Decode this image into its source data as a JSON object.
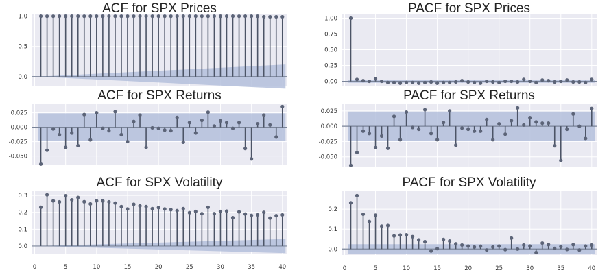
{
  "chart_data": [
    {
      "id": "acf-prices",
      "type": "stem",
      "title": "ACF for SPX Prices",
      "ylim": [
        -0.15,
        1.03
      ],
      "yticks": [
        0.0,
        0.5,
        1.0
      ],
      "ytick_labels": [
        "0.0",
        "0.5",
        "1.0"
      ],
      "xlim": [
        -0.5,
        40.8
      ],
      "xticks": [
        0,
        5,
        10,
        15,
        20,
        25,
        30,
        35,
        40
      ],
      "show_xtick_labels": false,
      "lags": [
        1,
        2,
        3,
        4,
        5,
        6,
        7,
        8,
        9,
        10,
        11,
        12,
        13,
        14,
        15,
        16,
        17,
        18,
        19,
        20,
        21,
        22,
        23,
        24,
        25,
        26,
        27,
        28,
        29,
        30,
        31,
        32,
        33,
        34,
        35,
        36,
        37,
        38,
        39,
        40
      ],
      "values": [
        1.0,
        1.0,
        1.0,
        1.0,
        1.0,
        1.0,
        1.0,
        1.0,
        1.0,
        1.0,
        1.0,
        1.0,
        1.0,
        1.0,
        1.0,
        1.0,
        1.0,
        1.0,
        1.0,
        1.0,
        1.0,
        1.0,
        1.0,
        1.0,
        1.0,
        1.0,
        1.0,
        1.0,
        1.0,
        1.0,
        1.0,
        1.0,
        1.0,
        1.0,
        1.0,
        1.0,
        0.99,
        0.99,
        0.99,
        0.99
      ],
      "confint": {
        "type": "growing",
        "start": 0.0,
        "end": 0.2
      },
      "grid": true
    },
    {
      "id": "pacf-prices",
      "type": "stem",
      "title": "PACF for SPX Prices",
      "ylim": [
        -0.07,
        1.06
      ],
      "yticks": [
        0.0,
        0.25,
        0.5,
        0.75,
        1.0
      ],
      "ytick_labels": [
        "0.00",
        "0.25",
        "0.50",
        "0.75",
        "1.00"
      ],
      "xlim": [
        -0.5,
        40.8
      ],
      "xticks": [
        0,
        5,
        10,
        15,
        20,
        25,
        30,
        35,
        40
      ],
      "show_xtick_labels": false,
      "lags": [
        1,
        2,
        3,
        4,
        5,
        6,
        7,
        8,
        9,
        10,
        11,
        12,
        13,
        14,
        15,
        16,
        17,
        18,
        19,
        20,
        21,
        22,
        23,
        24,
        25,
        26,
        27,
        28,
        29,
        30,
        31,
        32,
        33,
        34,
        35,
        36,
        37,
        38,
        39,
        40
      ],
      "values": [
        1.0,
        0.03,
        0.01,
        0.0,
        0.04,
        0.0,
        -0.02,
        -0.02,
        -0.03,
        -0.02,
        -0.02,
        -0.03,
        -0.02,
        -0.01,
        -0.03,
        -0.02,
        -0.02,
        -0.01,
        0.01,
        -0.01,
        -0.02,
        -0.03,
        0.0,
        -0.01,
        -0.02,
        0.0,
        0.0,
        -0.01,
        0.03,
        0.0,
        -0.02,
        0.02,
        0.01,
        -0.01,
        0.0,
        0.02,
        -0.01,
        -0.01,
        -0.02,
        0.03
      ],
      "confint": {
        "type": "constant",
        "value": 0.024
      },
      "grid": true
    },
    {
      "id": "acf-returns",
      "type": "stem",
      "title": "ACF for SPX Returns",
      "ylim": [
        -0.066,
        0.04
      ],
      "yticks": [
        -0.05,
        -0.025,
        0.0,
        0.025
      ],
      "ytick_labels": [
        "-0.050",
        "-0.025",
        "0.000",
        "0.025"
      ],
      "xlim": [
        -0.5,
        40.8
      ],
      "xticks": [
        0,
        5,
        10,
        15,
        20,
        25,
        30,
        35,
        40
      ],
      "show_xtick_labels": false,
      "lags": [
        1,
        2,
        3,
        4,
        5,
        6,
        7,
        8,
        9,
        10,
        11,
        12,
        13,
        14,
        15,
        16,
        17,
        18,
        19,
        20,
        21,
        22,
        23,
        24,
        25,
        26,
        27,
        28,
        29,
        30,
        31,
        32,
        33,
        34,
        35,
        36,
        37,
        38,
        39,
        40
      ],
      "values": [
        -0.064,
        -0.04,
        -0.003,
        -0.013,
        -0.035,
        -0.01,
        -0.032,
        0.022,
        -0.022,
        0.025,
        -0.002,
        -0.006,
        0.027,
        -0.013,
        -0.025,
        0.01,
        0.021,
        -0.035,
        -0.001,
        -0.002,
        -0.005,
        -0.006,
        0.017,
        -0.026,
        0.008,
        -0.01,
        0.012,
        0.026,
        0.002,
        0.011,
        0.008,
        -0.002,
        0.008,
        -0.037,
        -0.055,
        0.006,
        0.021,
        0.004,
        -0.017,
        0.036
      ],
      "confint": {
        "type": "constant",
        "value": 0.024
      },
      "grid": true
    },
    {
      "id": "pacf-returns",
      "type": "stem",
      "title": "PACF for SPX Returns",
      "ylim": [
        -0.066,
        0.036
      ],
      "yticks": [
        -0.05,
        -0.025,
        0.0,
        0.025
      ],
      "ytick_labels": [
        "-0.050",
        "-0.025",
        "0.000",
        "0.025"
      ],
      "xlim": [
        -0.5,
        40.8
      ],
      "xticks": [
        0,
        5,
        10,
        15,
        20,
        25,
        30,
        35,
        40
      ],
      "show_xtick_labels": false,
      "lags": [
        1,
        2,
        3,
        4,
        5,
        6,
        7,
        8,
        9,
        10,
        11,
        12,
        13,
        14,
        15,
        16,
        17,
        18,
        19,
        20,
        21,
        22,
        23,
        24,
        25,
        26,
        27,
        28,
        29,
        30,
        31,
        32,
        33,
        34,
        35,
        36,
        37,
        38,
        39,
        40
      ],
      "values": [
        -0.064,
        -0.043,
        -0.008,
        -0.012,
        -0.035,
        -0.016,
        -0.036,
        0.016,
        -0.022,
        0.023,
        -0.002,
        -0.005,
        0.027,
        -0.012,
        -0.022,
        0.006,
        0.025,
        -0.031,
        -0.003,
        -0.005,
        -0.008,
        -0.008,
        0.011,
        -0.022,
        0.004,
        -0.013,
        0.009,
        0.03,
        0.002,
        0.014,
        0.007,
        0.005,
        0.005,
        -0.032,
        -0.056,
        -0.005,
        0.02,
        0.0,
        -0.02,
        0.029
      ],
      "confint": {
        "type": "constant",
        "value": 0.024
      },
      "grid": true
    },
    {
      "id": "acf-volatility",
      "type": "stem",
      "title": "ACF for SPX Volatility",
      "ylim": [
        -0.045,
        0.325
      ],
      "yticks": [
        0.0,
        0.1,
        0.2,
        0.3
      ],
      "ytick_labels": [
        "0.0",
        "0.1",
        "0.2",
        "0.3"
      ],
      "xlim": [
        -0.5,
        40.8
      ],
      "xticks": [
        0,
        5,
        10,
        15,
        20,
        25,
        30,
        35,
        40
      ],
      "show_xtick_labels": true,
      "xtick_labels": [
        "0",
        "5",
        "10",
        "15",
        "20",
        "25",
        "30",
        "35",
        "40"
      ],
      "lags": [
        1,
        2,
        3,
        4,
        5,
        6,
        7,
        8,
        9,
        10,
        11,
        12,
        13,
        14,
        15,
        16,
        17,
        18,
        19,
        20,
        21,
        22,
        23,
        24,
        25,
        26,
        27,
        28,
        29,
        30,
        31,
        32,
        33,
        34,
        35,
        36,
        37,
        38,
        39,
        40
      ],
      "values": [
        0.23,
        0.304,
        0.268,
        0.262,
        0.298,
        0.274,
        0.288,
        0.263,
        0.25,
        0.268,
        0.268,
        0.262,
        0.255,
        0.234,
        0.22,
        0.248,
        0.238,
        0.234,
        0.222,
        0.228,
        0.22,
        0.216,
        0.21,
        0.222,
        0.198,
        0.205,
        0.192,
        0.23,
        0.192,
        0.205,
        0.207,
        0.168,
        0.203,
        0.19,
        0.182,
        0.185,
        0.2,
        0.166,
        0.18,
        0.185
      ],
      "confint": {
        "type": "growing",
        "start": 0.0,
        "end": 0.042
      },
      "grid": true
    },
    {
      "id": "pacf-volatility",
      "type": "stem",
      "title": "PACF for SPX Volatility",
      "ylim": [
        -0.03,
        0.29
      ],
      "yticks": [
        0.0,
        0.1,
        0.2
      ],
      "ytick_labels": [
        "0.0",
        "0.1",
        "0.2"
      ],
      "xlim": [
        -0.5,
        40.8
      ],
      "xticks": [
        0,
        5,
        10,
        15,
        20,
        25,
        30,
        35,
        40
      ],
      "show_xtick_labels": true,
      "xtick_labels": [
        "0",
        "5",
        "10",
        "15",
        "20",
        "25",
        "30",
        "35",
        "40"
      ],
      "lags": [
        1,
        2,
        3,
        4,
        5,
        6,
        7,
        8,
        9,
        10,
        11,
        12,
        13,
        14,
        15,
        16,
        17,
        18,
        19,
        20,
        21,
        22,
        23,
        24,
        25,
        26,
        27,
        28,
        29,
        30,
        31,
        32,
        33,
        34,
        35,
        36,
        37,
        38,
        39,
        40
      ],
      "values": [
        0.232,
        0.268,
        0.175,
        0.138,
        0.17,
        0.115,
        0.118,
        0.066,
        0.07,
        0.071,
        0.062,
        0.046,
        0.037,
        -0.01,
        0.002,
        0.048,
        0.04,
        0.026,
        0.02,
        0.015,
        0.01,
        0.014,
        -0.005,
        0.01,
        0.015,
        -0.003,
        0.055,
        0.0,
        0.02,
        0.015,
        -0.018,
        0.03,
        0.022,
        0.003,
        0.012,
        -0.002,
        0.022,
        -0.005,
        0.015,
        0.02
      ],
      "confint": {
        "type": "constant",
        "value": 0.024
      },
      "grid": true
    }
  ],
  "colors": {
    "axes_bg": "#eaeaf2",
    "grid": "#ffffff",
    "stem": "#4c5466",
    "marker": "#5c6478",
    "zero_line": "#7a8499",
    "confint_fill": "#b4bfdc"
  }
}
